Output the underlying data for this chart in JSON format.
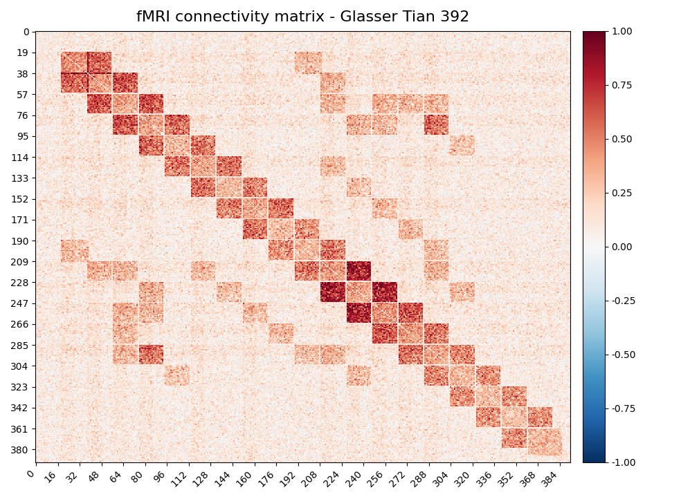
{
  "title": "fMRI connectivity matrix - Glasser Tian 392",
  "matrix_size": 392,
  "vmin": -1.0,
  "vmax": 1.0,
  "cmap": "RdBu_r",
  "ytick_values": [
    0,
    19,
    38,
    57,
    76,
    95,
    114,
    133,
    152,
    171,
    190,
    209,
    228,
    247,
    266,
    285,
    304,
    323,
    342,
    361,
    380
  ],
  "xtick_values": [
    0,
    16,
    32,
    48,
    64,
    80,
    96,
    112,
    128,
    144,
    160,
    176,
    192,
    208,
    224,
    240,
    256,
    272,
    288,
    304,
    320,
    336,
    352,
    368,
    384
  ],
  "colorbar_ticks": [
    1.0,
    0.75,
    0.5,
    0.25,
    0.0,
    -0.25,
    -0.5,
    -0.75,
    -1.0
  ],
  "seed": 42,
  "background_color": "#ffffff",
  "figsize": [
    9.97,
    7.22
  ],
  "dpi": 100,
  "title_fontsize": 16,
  "base_mean": 0.08,
  "base_std": 0.13
}
